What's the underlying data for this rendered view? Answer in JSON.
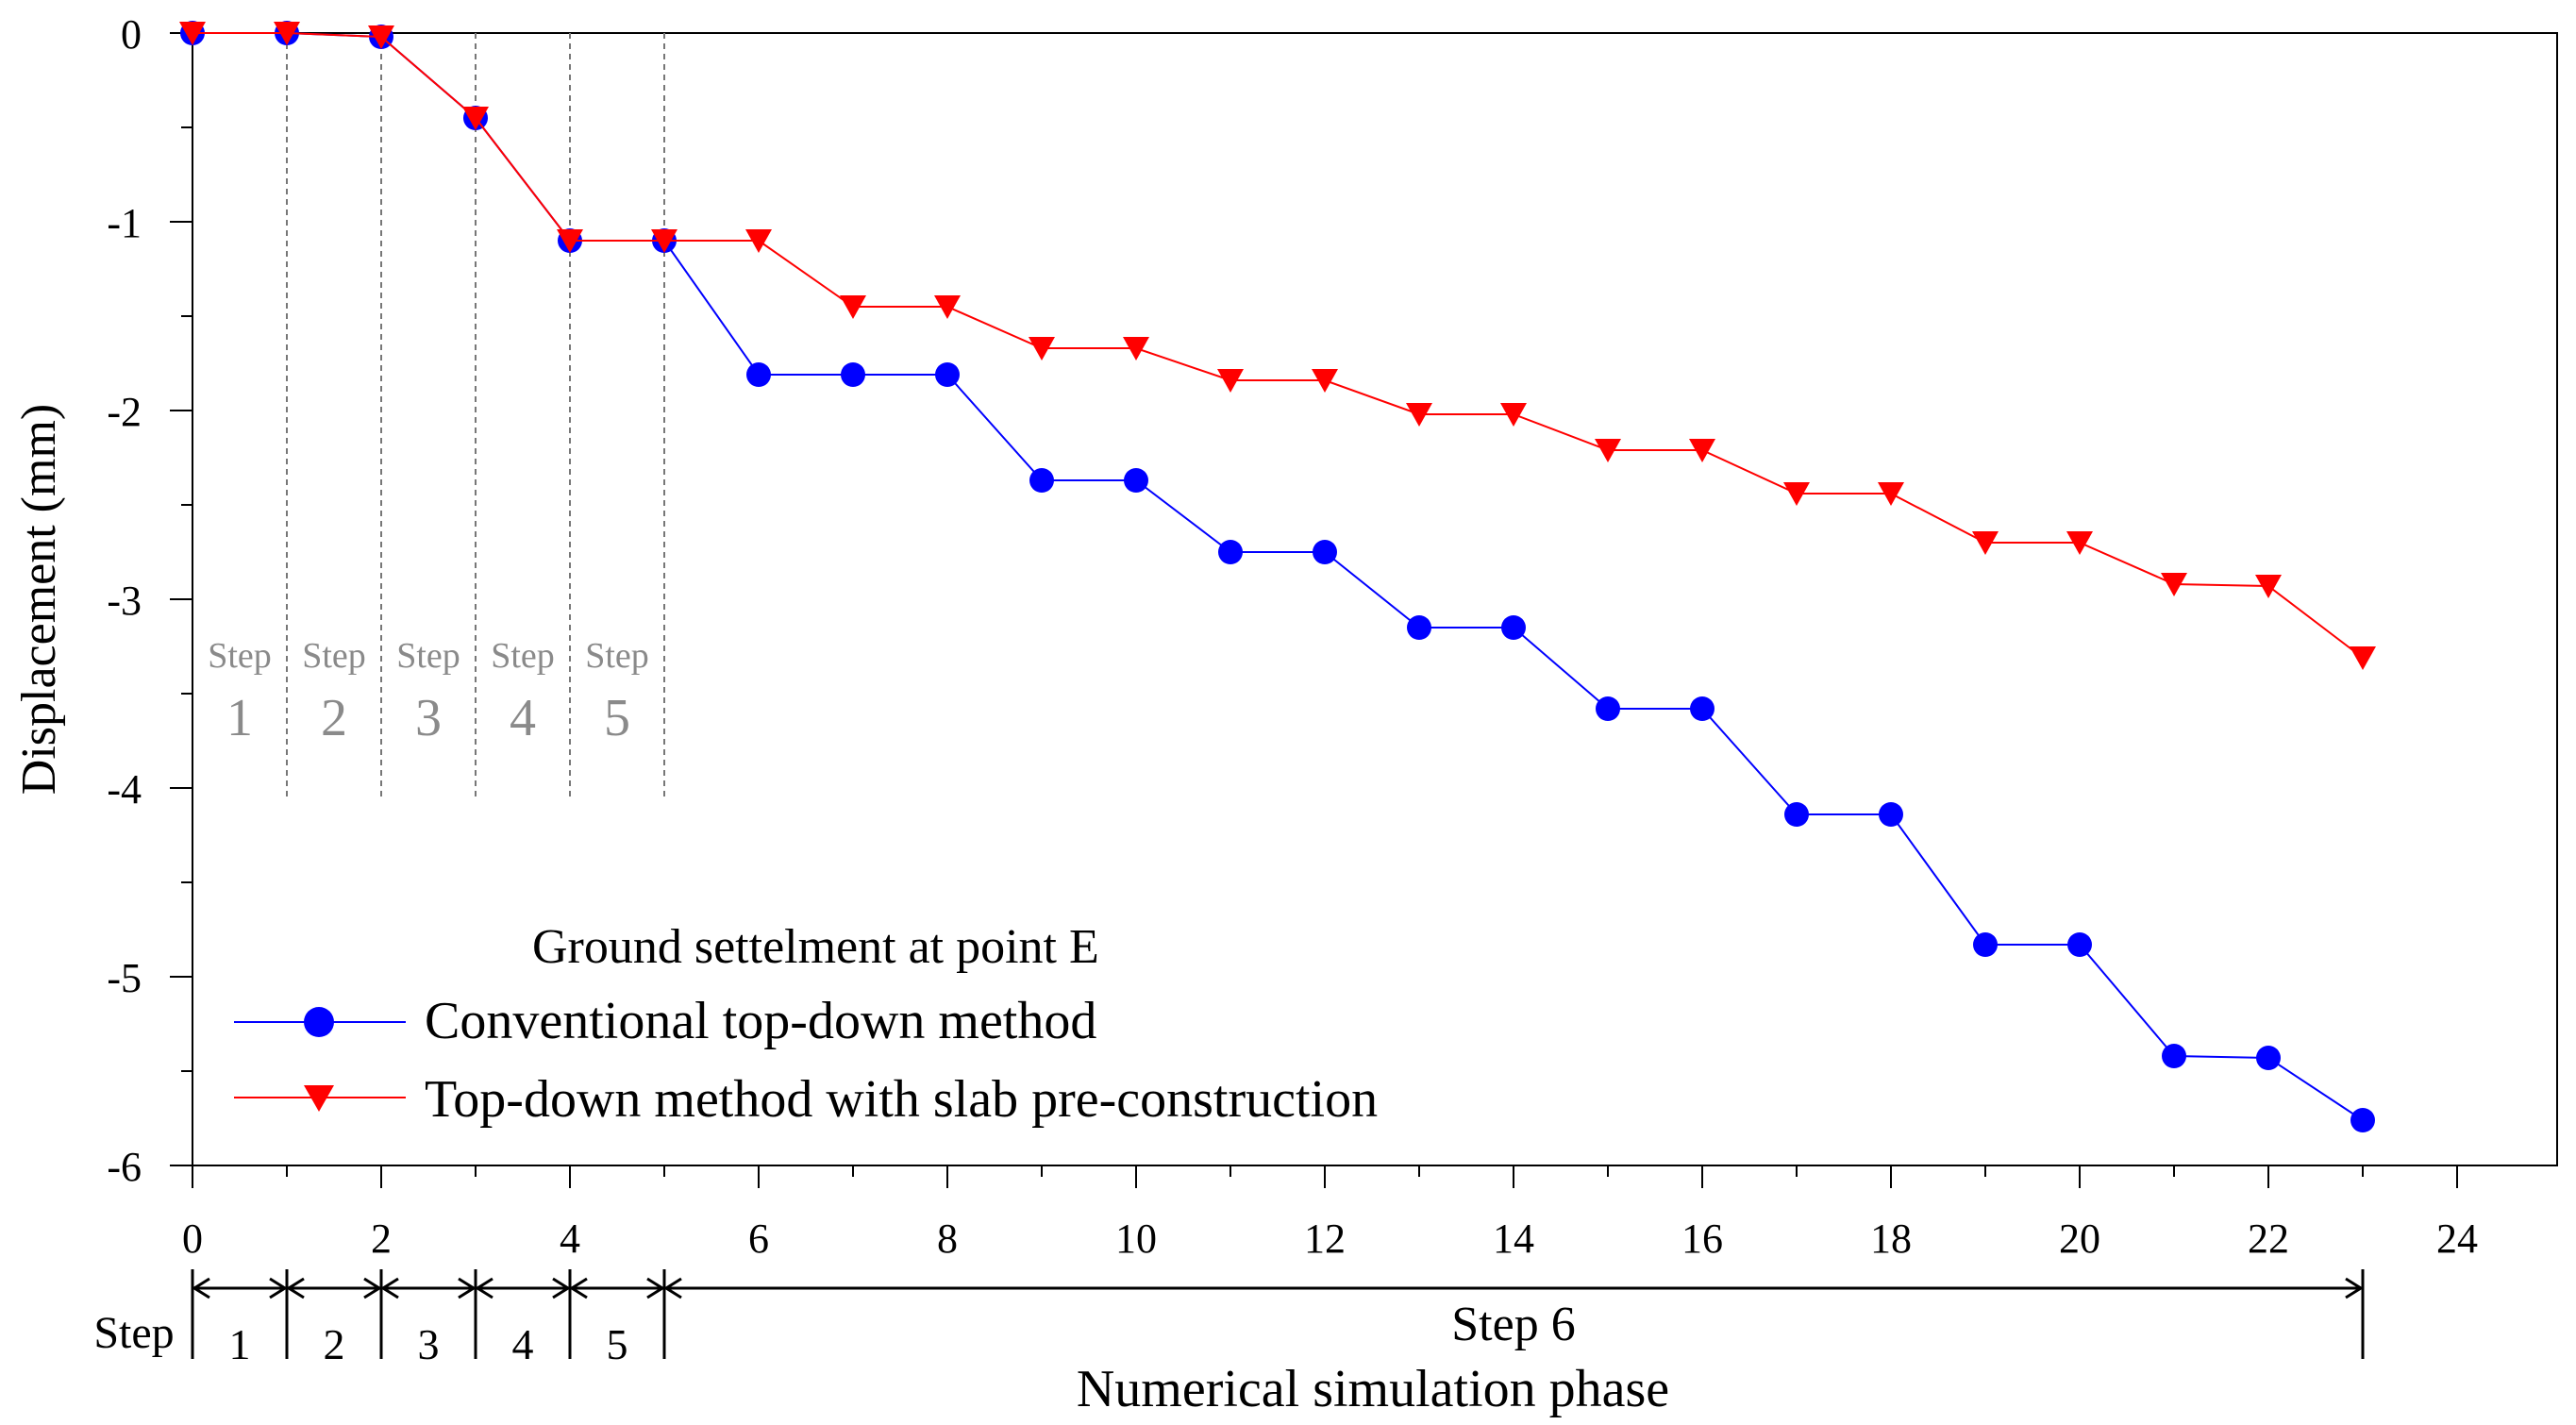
{
  "chart_data": {
    "type": "line",
    "title": "",
    "xlabel": "Numerical simulation phase",
    "ylabel": "Displacement (mm)",
    "xlim": [
      0,
      24
    ],
    "ylim": [
      -6,
      0
    ],
    "x_ticks": [
      0,
      2,
      4,
      6,
      8,
      10,
      12,
      14,
      16,
      18,
      20,
      22,
      24
    ],
    "y_ticks": [
      0,
      -1,
      -2,
      -3,
      -4,
      -5,
      -6
    ],
    "x_tick_labels": [
      "0",
      "2",
      "4",
      "6",
      "8",
      "10",
      "12",
      "14",
      "16",
      "18",
      "20",
      "22",
      "24"
    ],
    "y_tick_labels": [
      "0",
      "-1",
      "-2",
      "-3",
      "-4",
      "-5",
      "-6"
    ],
    "legend": {
      "title": "Ground settelment at point E",
      "placement": "bottom-left"
    },
    "series": [
      {
        "name": "Conventional top-down method",
        "color": "#0000ff",
        "marker": "circle",
        "x": [
          0,
          1,
          2,
          3,
          4,
          5,
          6,
          7,
          8,
          9,
          10,
          11,
          12,
          13,
          14,
          15,
          16,
          17,
          18,
          19,
          20,
          21,
          22,
          23
        ],
        "values": [
          0,
          0,
          -0.02,
          -0.45,
          -1.1,
          -1.1,
          -1.81,
          -1.81,
          -1.81,
          -2.37,
          -2.37,
          -2.75,
          -2.75,
          -3.15,
          -3.15,
          -3.58,
          -3.58,
          -4.14,
          -4.14,
          -4.83,
          -4.83,
          -5.42,
          -5.43,
          -5.76
        ]
      },
      {
        "name": "Top-down method with slab pre-construction",
        "color": "#ff0000",
        "marker": "triangle-down",
        "x": [
          0,
          1,
          2,
          3,
          4,
          5,
          6,
          7,
          8,
          9,
          10,
          11,
          12,
          13,
          14,
          15,
          16,
          17,
          18,
          19,
          20,
          21,
          22,
          23
        ],
        "values": [
          0,
          0,
          -0.02,
          -0.45,
          -1.1,
          -1.1,
          -1.1,
          -1.45,
          -1.45,
          -1.67,
          -1.67,
          -1.84,
          -1.84,
          -2.02,
          -2.02,
          -2.21,
          -2.21,
          -2.44,
          -2.44,
          -2.7,
          -2.7,
          -2.92,
          -2.93,
          -3.31
        ]
      }
    ],
    "step_markers": {
      "boundaries": [
        1,
        2,
        3,
        4,
        5
      ],
      "word": "Step",
      "labels": [
        {
          "word": "Step",
          "num": "1",
          "x": 0.5
        },
        {
          "word": "Step",
          "num": "2",
          "x": 1.5
        },
        {
          "word": "Step",
          "num": "3",
          "x": 2.5
        },
        {
          "word": "Step",
          "num": "4",
          "x": 3.5
        },
        {
          "word": "Step",
          "num": "5",
          "x": 4.5
        }
      ]
    },
    "step_ranges": {
      "title": "Step",
      "ranges": [
        {
          "label": "1",
          "from": 0,
          "to": 1
        },
        {
          "label": "2",
          "from": 1,
          "to": 2
        },
        {
          "label": "3",
          "from": 2,
          "to": 3
        },
        {
          "label": "4",
          "from": 3,
          "to": 4
        },
        {
          "label": "5",
          "from": 4,
          "to": 5
        },
        {
          "label": "Step 6",
          "from": 5,
          "to": 23
        }
      ]
    }
  }
}
